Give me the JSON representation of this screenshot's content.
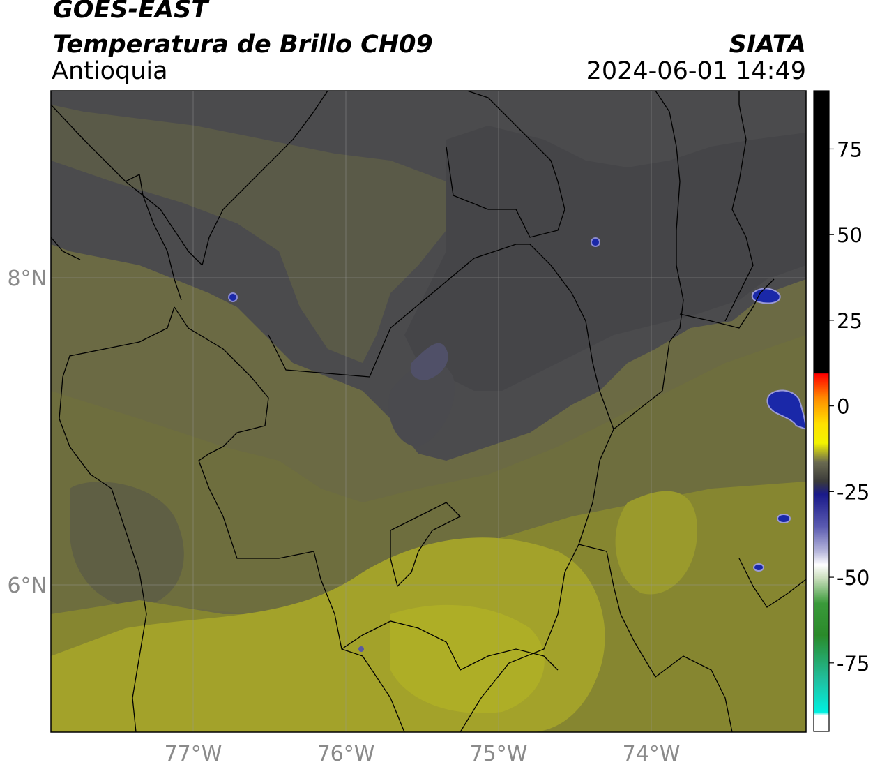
{
  "header": {
    "satellite": "GOES-EAST",
    "product": "Temperatura de Brillo CH09",
    "region": "Antioquia",
    "organization": "SIATA",
    "timestamp": "2024-06-01 14:49"
  },
  "map": {
    "lon_ticks": [
      "77°W",
      "76°W",
      "75°W",
      "74°W"
    ],
    "lat_ticks": [
      "8°N",
      "6°N"
    ],
    "colors": {
      "cold_gray": "#4a4a4c",
      "mid_olive": "#6a6a40",
      "warm_olive": "#8a8a30",
      "warm_yellow": "#a8a826",
      "blue_cells": "#1e2aa0"
    }
  },
  "colorbar": {
    "ticks": [
      "75",
      "50",
      "25",
      "0",
      "-25",
      "-50",
      "-75"
    ],
    "tick_values": [
      75,
      50,
      25,
      0,
      -25,
      -50,
      -75
    ],
    "range": [
      -95,
      92
    ]
  }
}
